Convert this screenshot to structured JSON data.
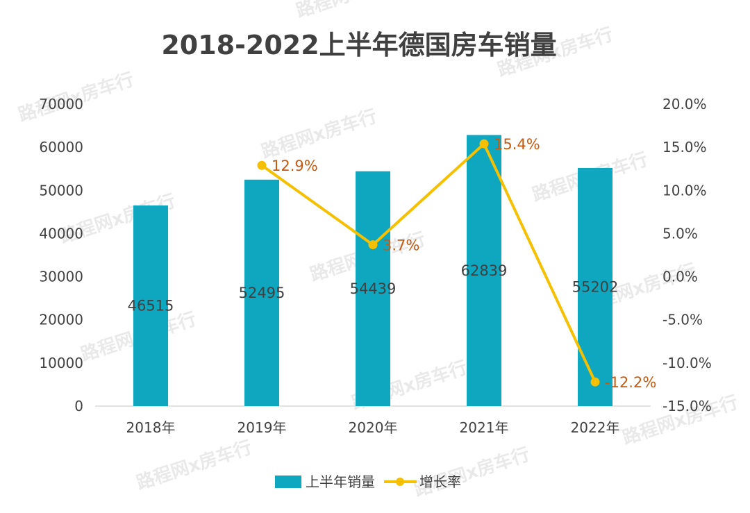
{
  "chart_data": {
    "type": "bar+line",
    "title": "2018-2022上半年德国房车销量",
    "categories": [
      "2018年",
      "2019年",
      "2020年",
      "2021年",
      "2022年"
    ],
    "series": [
      {
        "name": "上半年销量",
        "type": "bar",
        "axis": "left",
        "values": [
          46515,
          52495,
          54439,
          62839,
          55202
        ],
        "labels": [
          "46515",
          "52495",
          "54439",
          "62839",
          "55202"
        ],
        "color": "#0fa6c0"
      },
      {
        "name": "增长率",
        "type": "line",
        "axis": "right",
        "values": [
          null,
          12.9,
          3.7,
          15.4,
          -12.2
        ],
        "labels": [
          null,
          "12.9%",
          "3.7%",
          "15.4%",
          "-12.2%"
        ],
        "color": "#f5c000",
        "label_color": "#c55a11"
      }
    ],
    "y_left": {
      "min": 0,
      "max": 70000,
      "ticks": [
        "0",
        "10000",
        "20000",
        "30000",
        "40000",
        "50000",
        "60000",
        "70000"
      ]
    },
    "y_right": {
      "min": -15,
      "max": 20,
      "ticks": [
        "-15.0%",
        "-10.0%",
        "-5.0%",
        "0.0%",
        "5.0%",
        "10.0%",
        "15.0%",
        "20.0%"
      ]
    },
    "legend_position": "bottom",
    "watermark": "路程网x房车行"
  }
}
